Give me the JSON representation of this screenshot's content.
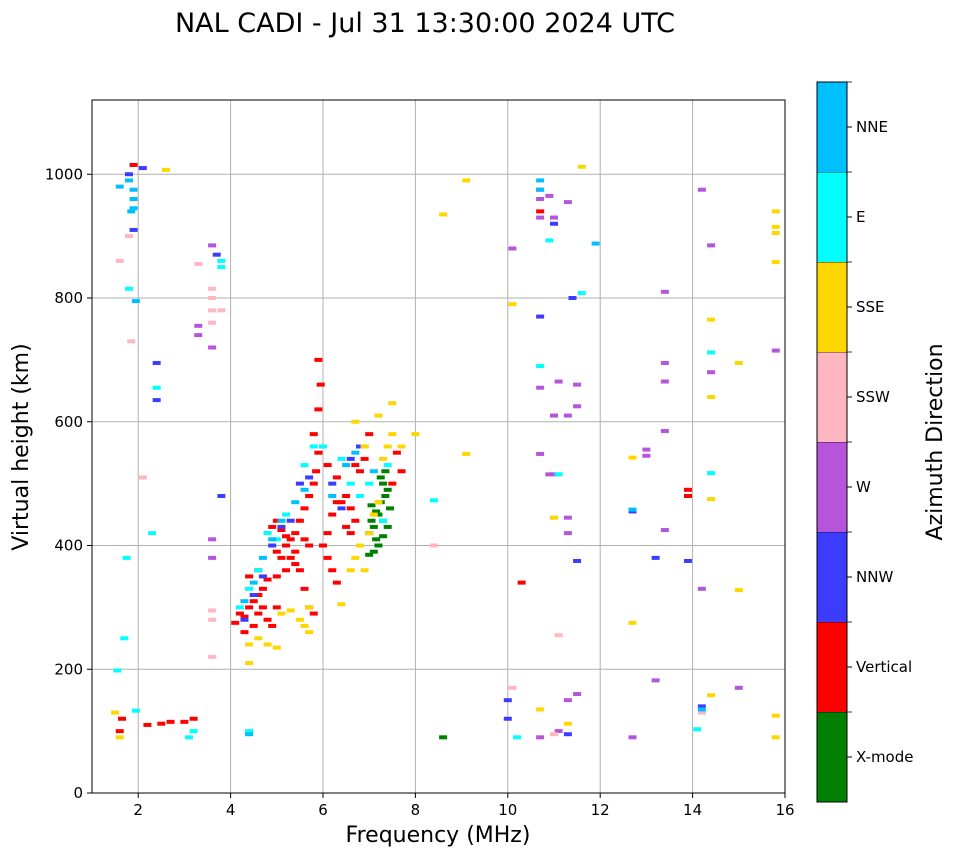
{
  "chart_data": {
    "type": "scatter",
    "title": "NAL CADI - Jul 31 13:30:00 2024 UTC",
    "xlabel": "Frequency (MHz)",
    "ylabel": "Virtual height (km)",
    "xlim": [
      1,
      16
    ],
    "ylim": [
      0,
      1120
    ],
    "xticks": [
      2,
      4,
      6,
      8,
      10,
      12,
      14,
      16
    ],
    "yticks": [
      0,
      200,
      400,
      600,
      800,
      1000
    ],
    "grid": true,
    "colorbar": {
      "label": "Azimuth Direction",
      "position": "right",
      "categories": [
        {
          "name": "X-mode",
          "color": "#008000"
        },
        {
          "name": "Vertical",
          "color": "#ff0000"
        },
        {
          "name": "NNW",
          "color": "#3c3cff"
        },
        {
          "name": "W",
          "color": "#b455dc"
        },
        {
          "name": "SSW",
          "color": "#ffb6c1"
        },
        {
          "name": "SSE",
          "color": "#ffd700"
        },
        {
          "name": "E",
          "color": "#00ffff"
        },
        {
          "name": "NNE",
          "color": "#00bfff"
        }
      ]
    },
    "series": [
      {
        "name": "X-mode",
        "points": [
          [
            7.0,
            420
          ],
          [
            7.05,
            440
          ],
          [
            7.1,
            430
          ],
          [
            7.15,
            410
          ],
          [
            7.2,
            450
          ],
          [
            7.25,
            470
          ],
          [
            7.3,
            440
          ],
          [
            7.35,
            480
          ],
          [
            7.3,
            500
          ],
          [
            7.4,
            490
          ],
          [
            7.45,
            460
          ],
          [
            7.2,
            400
          ],
          [
            7.1,
            390
          ],
          [
            7.0,
            385
          ],
          [
            7.25,
            510
          ],
          [
            7.35,
            520
          ],
          [
            7.4,
            430
          ],
          [
            7.15,
            455
          ],
          [
            7.05,
            465
          ],
          [
            7.3,
            415
          ],
          [
            8.6,
            90
          ]
        ]
      },
      {
        "name": "Vertical",
        "points": [
          [
            4.1,
            275
          ],
          [
            4.2,
            290
          ],
          [
            4.3,
            285
          ],
          [
            4.4,
            300
          ],
          [
            4.5,
            310
          ],
          [
            4.6,
            320
          ],
          [
            4.7,
            330
          ],
          [
            4.8,
            345
          ],
          [
            4.6,
            290
          ],
          [
            4.7,
            300
          ],
          [
            4.8,
            280
          ],
          [
            4.9,
            270
          ],
          [
            5.0,
            300
          ],
          [
            5.0,
            350
          ],
          [
            5.1,
            380
          ],
          [
            5.2,
            400
          ],
          [
            5.3,
            410
          ],
          [
            5.4,
            420
          ],
          [
            5.5,
            440
          ],
          [
            5.6,
            460
          ],
          [
            5.7,
            480
          ],
          [
            5.8,
            500
          ],
          [
            5.85,
            520
          ],
          [
            5.9,
            550
          ],
          [
            5.8,
            580
          ],
          [
            5.9,
            620
          ],
          [
            5.95,
            660
          ],
          [
            5.9,
            700
          ],
          [
            4.8,
            420
          ],
          [
            4.9,
            430
          ],
          [
            5.0,
            440
          ],
          [
            5.1,
            425
          ],
          [
            5.2,
            415
          ],
          [
            5.3,
            380
          ],
          [
            5.4,
            370
          ],
          [
            5.5,
            360
          ],
          [
            5.6,
            330
          ],
          [
            5.7,
            300
          ],
          [
            5.8,
            290
          ],
          [
            6.0,
            400
          ],
          [
            6.1,
            420
          ],
          [
            6.2,
            450
          ],
          [
            6.3,
            470
          ],
          [
            6.4,
            470
          ],
          [
            6.5,
            480
          ],
          [
            6.6,
            460
          ],
          [
            6.7,
            440
          ],
          [
            6.8,
            520
          ],
          [
            6.9,
            540
          ],
          [
            6.1,
            380
          ],
          [
            6.2,
            360
          ],
          [
            6.3,
            340
          ],
          [
            6.5,
            430
          ],
          [
            6.6,
            420
          ],
          [
            4.3,
            260
          ],
          [
            4.5,
            270
          ],
          [
            4.4,
            350
          ],
          [
            4.6,
            360
          ],
          [
            5.0,
            390
          ],
          [
            5.2,
            360
          ],
          [
            5.4,
            390
          ],
          [
            5.6,
            410
          ],
          [
            5.7,
            400
          ],
          [
            6.1,
            530
          ],
          [
            6.3,
            510
          ],
          [
            6.7,
            530
          ],
          [
            6.9,
            560
          ],
          [
            7.0,
            580
          ],
          [
            7.5,
            500
          ],
          [
            7.6,
            550
          ],
          [
            7.7,
            520
          ],
          [
            3.2,
            120
          ],
          [
            3.0,
            115
          ],
          [
            2.5,
            112
          ],
          [
            2.7,
            115
          ],
          [
            2.2,
            110
          ],
          [
            10.3,
            340
          ],
          [
            10.7,
            940
          ],
          [
            13.9,
            490
          ],
          [
            13.9,
            480
          ],
          [
            1.9,
            1015
          ],
          [
            1.6,
            100
          ],
          [
            1.65,
            120
          ]
        ]
      },
      {
        "name": "NNW",
        "points": [
          [
            4.3,
            280
          ],
          [
            4.5,
            320
          ],
          [
            4.7,
            350
          ],
          [
            4.9,
            400
          ],
          [
            5.1,
            430
          ],
          [
            5.3,
            440
          ],
          [
            5.5,
            500
          ],
          [
            5.7,
            510
          ],
          [
            6.2,
            500
          ],
          [
            6.4,
            460
          ],
          [
            6.6,
            540
          ],
          [
            6.8,
            560
          ],
          [
            10.0,
            150
          ],
          [
            10.7,
            770
          ],
          [
            11.0,
            920
          ],
          [
            11.4,
            800
          ],
          [
            11.5,
            375
          ],
          [
            12.7,
            455
          ],
          [
            13.2,
            380
          ],
          [
            13.9,
            375
          ],
          [
            14.2,
            140
          ],
          [
            3.8,
            480
          ],
          [
            3.7,
            870
          ],
          [
            2.4,
            695
          ],
          [
            2.4,
            635
          ],
          [
            1.8,
            1000
          ],
          [
            1.9,
            910
          ],
          [
            2.1,
            1010
          ],
          [
            10.0,
            120
          ],
          [
            11.3,
            95
          ]
        ]
      },
      {
        "name": "W",
        "points": [
          [
            3.6,
            885
          ],
          [
            3.6,
            720
          ],
          [
            3.3,
            740
          ],
          [
            3.3,
            755
          ],
          [
            3.6,
            410
          ],
          [
            3.6,
            380
          ],
          [
            10.1,
            880
          ],
          [
            10.7,
            975
          ],
          [
            10.7,
            960
          ],
          [
            10.7,
            930
          ],
          [
            10.9,
            965
          ],
          [
            11.0,
            930
          ],
          [
            11.3,
            955
          ],
          [
            10.7,
            655
          ],
          [
            10.7,
            548
          ],
          [
            11.1,
            665
          ],
          [
            11.0,
            610
          ],
          [
            11.3,
            610
          ],
          [
            11.5,
            625
          ],
          [
            11.5,
            660
          ],
          [
            11.3,
            420
          ],
          [
            11.3,
            445
          ],
          [
            13.0,
            555
          ],
          [
            13.0,
            545
          ],
          [
            13.4,
            585
          ],
          [
            13.4,
            665
          ],
          [
            13.4,
            695
          ],
          [
            13.4,
            810
          ],
          [
            13.4,
            425
          ],
          [
            14.2,
            975
          ],
          [
            14.4,
            885
          ],
          [
            14.4,
            680
          ],
          [
            14.2,
            330
          ],
          [
            15.0,
            170
          ],
          [
            15.8,
            715
          ],
          [
            12.7,
            90
          ],
          [
            13.2,
            182
          ],
          [
            10.7,
            90
          ],
          [
            11.3,
            150
          ],
          [
            11.5,
            160
          ],
          [
            11.1,
            100
          ],
          [
            10.9,
            515
          ],
          [
            11.0,
            515
          ]
        ]
      },
      {
        "name": "SSW",
        "points": [
          [
            3.6,
            295
          ],
          [
            3.6,
            280
          ],
          [
            3.6,
            220
          ],
          [
            3.6,
            760
          ],
          [
            3.6,
            780
          ],
          [
            3.6,
            800
          ],
          [
            3.6,
            815
          ],
          [
            3.3,
            855
          ],
          [
            3.8,
            780
          ],
          [
            8.4,
            400
          ],
          [
            10.1,
            170
          ],
          [
            11.1,
            255
          ],
          [
            11.0,
            95
          ],
          [
            14.2,
            130
          ],
          [
            2.1,
            510
          ],
          [
            1.85,
            730
          ],
          [
            1.6,
            860
          ],
          [
            1.8,
            900
          ]
        ]
      },
      {
        "name": "SSE",
        "points": [
          [
            4.4,
            240
          ],
          [
            4.6,
            250
          ],
          [
            4.8,
            240
          ],
          [
            5.0,
            235
          ],
          [
            5.1,
            290
          ],
          [
            5.3,
            295
          ],
          [
            5.5,
            280
          ],
          [
            5.6,
            270
          ],
          [
            5.7,
            260
          ],
          [
            5.7,
            300
          ],
          [
            6.4,
            305
          ],
          [
            6.6,
            360
          ],
          [
            6.7,
            380
          ],
          [
            6.8,
            400
          ],
          [
            6.9,
            360
          ],
          [
            7.0,
            420
          ],
          [
            7.1,
            450
          ],
          [
            7.2,
            470
          ],
          [
            7.3,
            540
          ],
          [
            7.4,
            560
          ],
          [
            7.5,
            580
          ],
          [
            7.5,
            630
          ],
          [
            7.2,
            610
          ],
          [
            6.7,
            600
          ],
          [
            6.9,
            560
          ],
          [
            7.7,
            560
          ],
          [
            8.0,
            580
          ],
          [
            8.6,
            935
          ],
          [
            9.1,
            990
          ],
          [
            9.1,
            548
          ],
          [
            10.1,
            790
          ],
          [
            11.0,
            445
          ],
          [
            11.3,
            112
          ],
          [
            11.6,
            1012
          ],
          [
            12.7,
            542
          ],
          [
            12.7,
            275
          ],
          [
            14.4,
            765
          ],
          [
            14.4,
            640
          ],
          [
            14.4,
            475
          ],
          [
            14.4,
            158
          ],
          [
            15.0,
            695
          ],
          [
            15.0,
            328
          ],
          [
            15.8,
            940
          ],
          [
            15.8,
            915
          ],
          [
            15.8,
            905
          ],
          [
            15.8,
            858
          ],
          [
            15.8,
            125
          ],
          [
            15.8,
            90
          ],
          [
            10.7,
            135
          ],
          [
            2.6,
            1007
          ],
          [
            1.5,
            130
          ],
          [
            1.6,
            90
          ],
          [
            4.4,
            210
          ]
        ]
      },
      {
        "name": "E",
        "points": [
          [
            4.2,
            300
          ],
          [
            4.4,
            330
          ],
          [
            4.6,
            360
          ],
          [
            4.8,
            420
          ],
          [
            5.0,
            410
          ],
          [
            5.2,
            450
          ],
          [
            5.6,
            530
          ],
          [
            5.8,
            560
          ],
          [
            6.0,
            560
          ],
          [
            6.4,
            540
          ],
          [
            6.6,
            500
          ],
          [
            6.8,
            480
          ],
          [
            7.0,
            500
          ],
          [
            7.3,
            440
          ],
          [
            7.4,
            530
          ],
          [
            10.7,
            690
          ],
          [
            10.9,
            893
          ],
          [
            11.1,
            515
          ],
          [
            11.6,
            808
          ],
          [
            14.4,
            712
          ],
          [
            14.4,
            517
          ],
          [
            14.1,
            103
          ],
          [
            8.4,
            473
          ],
          [
            10.2,
            90
          ],
          [
            3.8,
            860
          ],
          [
            3.8,
            850
          ],
          [
            2.4,
            655
          ],
          [
            2.3,
            420
          ],
          [
            1.8,
            815
          ],
          [
            1.75,
            380
          ],
          [
            1.7,
            250
          ],
          [
            1.55,
            198
          ],
          [
            1.95,
            133
          ],
          [
            4.4,
            100
          ],
          [
            3.1,
            90
          ],
          [
            3.2,
            100
          ]
        ]
      },
      {
        "name": "NNE",
        "points": [
          [
            4.3,
            310
          ],
          [
            4.5,
            340
          ],
          [
            4.7,
            380
          ],
          [
            4.9,
            410
          ],
          [
            5.1,
            440
          ],
          [
            5.4,
            470
          ],
          [
            5.6,
            490
          ],
          [
            6.2,
            480
          ],
          [
            6.5,
            530
          ],
          [
            6.7,
            550
          ],
          [
            7.1,
            520
          ],
          [
            10.7,
            990
          ],
          [
            10.7,
            975
          ],
          [
            11.9,
            888
          ],
          [
            12.7,
            458
          ],
          [
            14.2,
            135
          ],
          [
            4.4,
            95
          ],
          [
            1.9,
            960
          ],
          [
            1.9,
            945
          ],
          [
            1.85,
            940
          ],
          [
            1.8,
            990
          ],
          [
            1.9,
            975
          ],
          [
            1.6,
            980
          ],
          [
            1.95,
            795
          ]
        ]
      }
    ]
  }
}
